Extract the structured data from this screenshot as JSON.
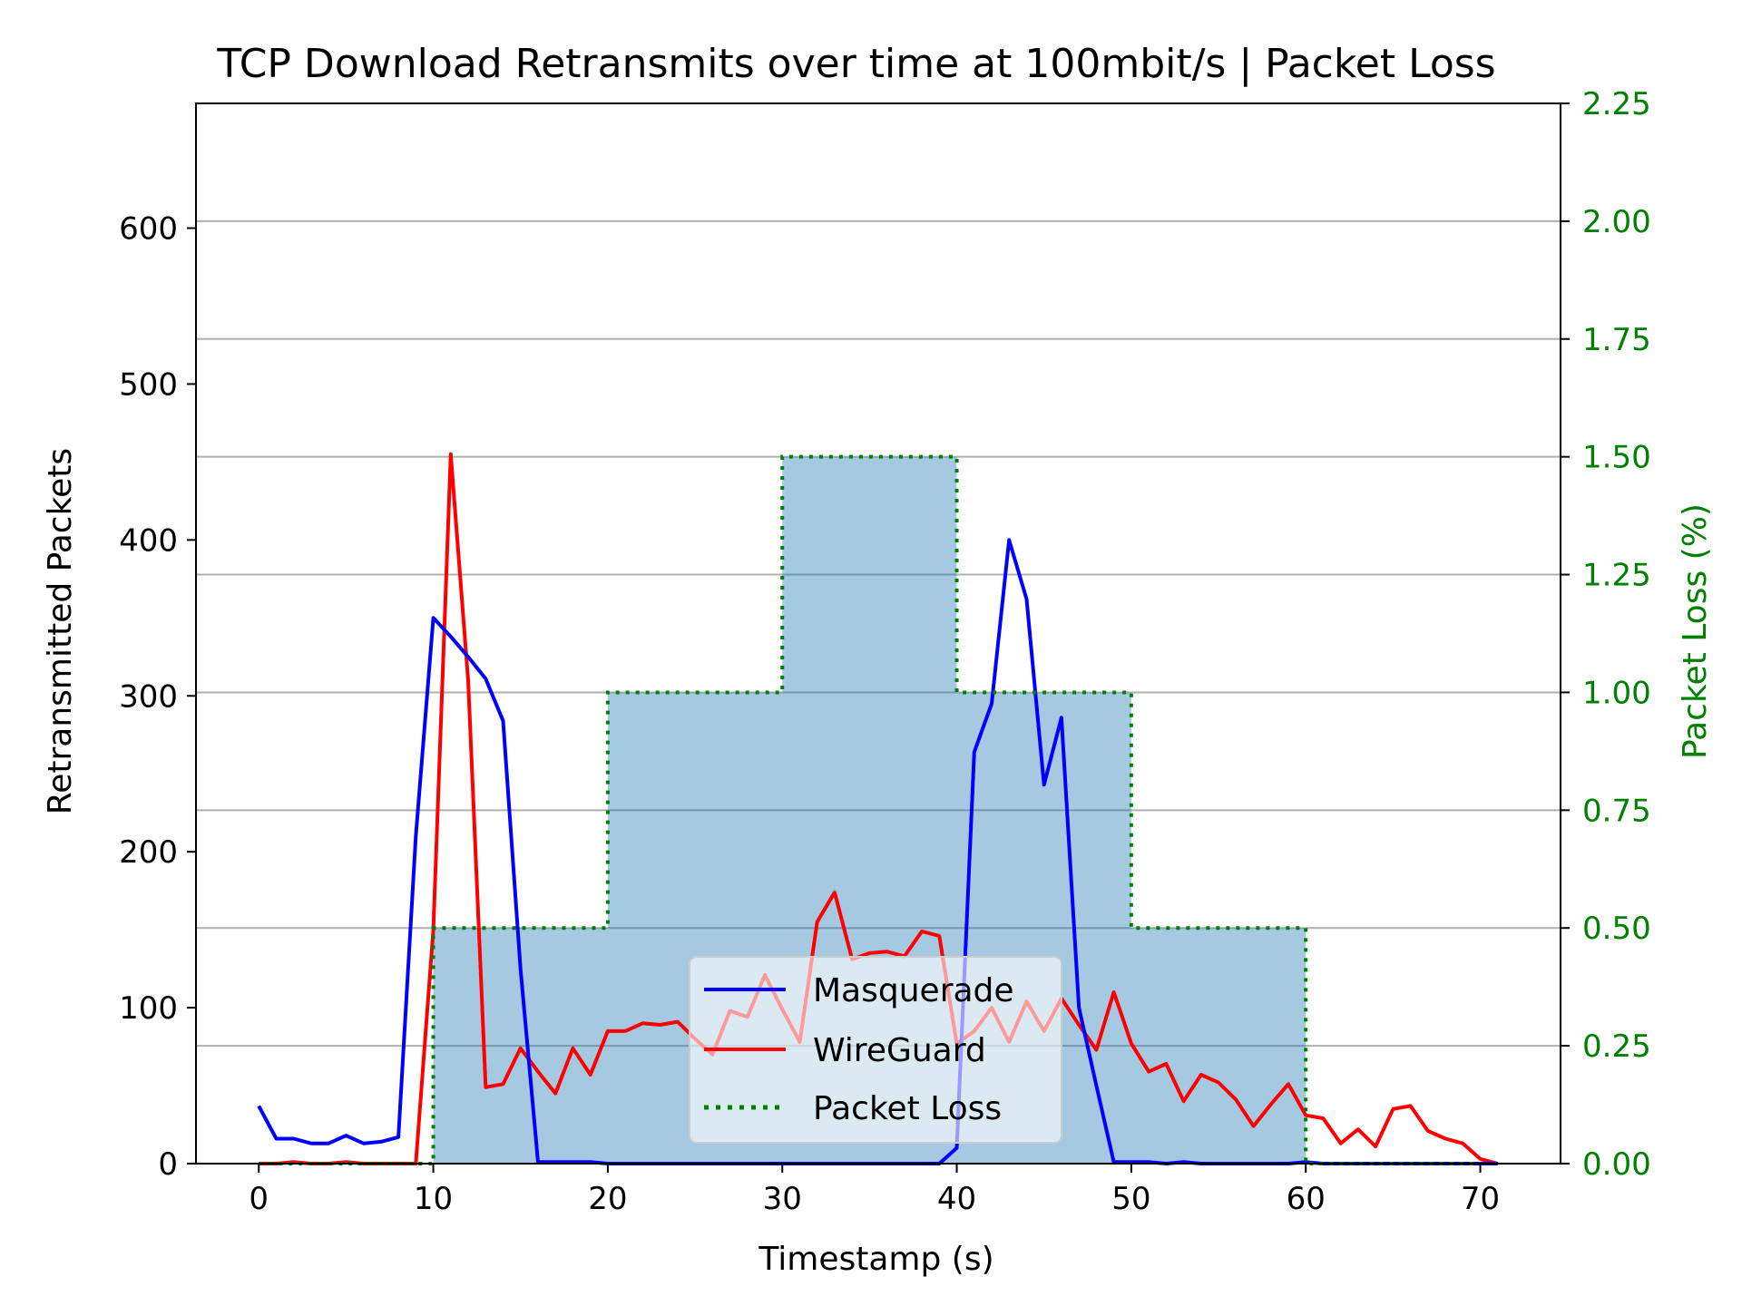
{
  "chart_data": {
    "type": "line",
    "title": "TCP Download Retransmits over time at 100mbit/s | Packet Loss",
    "xlabel": "Timestamp (s)",
    "ylabel": "Retransmitted Packets",
    "y2label": "Packet Loss (%)",
    "xlim": [
      -3.6,
      74.6
    ],
    "ylim": [
      0,
      680
    ],
    "y2lim": [
      0,
      2.25
    ],
    "xticks": [
      0,
      10,
      20,
      30,
      40,
      50,
      60,
      70
    ],
    "yticks": [
      0,
      100,
      200,
      300,
      400,
      500,
      600
    ],
    "y2ticks": [
      0.0,
      0.25,
      0.5,
      0.75,
      1.0,
      1.25,
      1.5,
      1.75,
      2.0,
      2.25
    ],
    "y2tick_labels": [
      "0.00",
      "0.25",
      "0.50",
      "0.75",
      "1.00",
      "1.25",
      "1.50",
      "1.75",
      "2.00",
      "2.25"
    ],
    "grid": "horizontal at right-axis ticks",
    "legend_position": "lower center",
    "colors": {
      "masquerade": "#0000ff",
      "wireguard": "#ff0000",
      "packet_loss": "#008000",
      "packet_loss_fill": "#1f77b4",
      "right_axis": "#008000",
      "grid": "#b0b0b0"
    },
    "series": [
      {
        "name": "Masquerade",
        "axis": "left",
        "x": [
          0,
          1,
          2,
          3,
          4,
          5,
          6,
          7,
          8,
          9,
          10,
          11,
          12,
          13,
          14,
          15,
          16,
          17,
          18,
          19,
          20,
          21,
          22,
          23,
          24,
          25,
          26,
          27,
          28,
          29,
          30,
          31,
          32,
          33,
          34,
          35,
          36,
          37,
          38,
          39,
          40,
          41,
          42,
          43,
          44,
          45,
          46,
          47,
          48,
          49,
          50,
          51,
          52,
          53,
          54,
          55,
          56,
          57,
          58,
          59,
          60,
          61,
          62,
          63,
          64,
          65,
          66,
          67,
          68,
          69,
          70,
          71
        ],
        "values": [
          37,
          16,
          16,
          13,
          13,
          18,
          13,
          14,
          17,
          210,
          350,
          338,
          325,
          311,
          284,
          125,
          1,
          1,
          1,
          1,
          0,
          0,
          0,
          0,
          0,
          0,
          0,
          0,
          0,
          0,
          0,
          0,
          0,
          0,
          0,
          0,
          0,
          0,
          0,
          0,
          10,
          264,
          295,
          400,
          362,
          243,
          286,
          100,
          50,
          1,
          1,
          1,
          0,
          1,
          0,
          0,
          0,
          0,
          0,
          0,
          1,
          0,
          0,
          0,
          0,
          0,
          0,
          0,
          0,
          0,
          0,
          0
        ]
      },
      {
        "name": "WireGuard",
        "axis": "left",
        "x": [
          0,
          1,
          2,
          3,
          4,
          5,
          6,
          7,
          8,
          9,
          10,
          11,
          12,
          13,
          14,
          15,
          16,
          17,
          18,
          19,
          20,
          21,
          22,
          23,
          24,
          25,
          26,
          27,
          28,
          29,
          30,
          31,
          32,
          33,
          34,
          35,
          36,
          37,
          38,
          39,
          40,
          41,
          42,
          43,
          44,
          45,
          46,
          47,
          48,
          49,
          50,
          51,
          52,
          53,
          54,
          55,
          56,
          57,
          58,
          59,
          60,
          61,
          62,
          63,
          64,
          65,
          66,
          67,
          68,
          69,
          70,
          71
        ],
        "values": [
          0,
          0,
          1,
          0,
          0,
          1,
          0,
          0,
          0,
          0,
          150,
          455,
          310,
          49,
          51,
          74,
          59,
          45,
          74,
          57,
          85,
          85,
          90,
          89,
          91,
          80,
          70,
          98,
          94,
          121,
          99,
          78,
          155,
          174,
          131,
          135,
          136,
          133,
          149,
          146,
          77,
          85,
          100,
          78,
          104,
          85,
          106,
          89,
          73,
          110,
          77,
          59,
          64,
          40,
          57,
          52,
          41,
          24,
          38,
          51,
          31,
          29,
          13,
          22,
          11,
          35,
          37,
          21,
          16,
          13,
          3,
          0
        ]
      },
      {
        "name": "Packet Loss",
        "axis": "right",
        "step": "post",
        "x": [
          0,
          10,
          20,
          30,
          40,
          50,
          60,
          70
        ],
        "values": [
          0.0,
          0.5,
          1.0,
          1.5,
          1.0,
          0.5,
          0.0,
          0.0
        ]
      }
    ]
  }
}
